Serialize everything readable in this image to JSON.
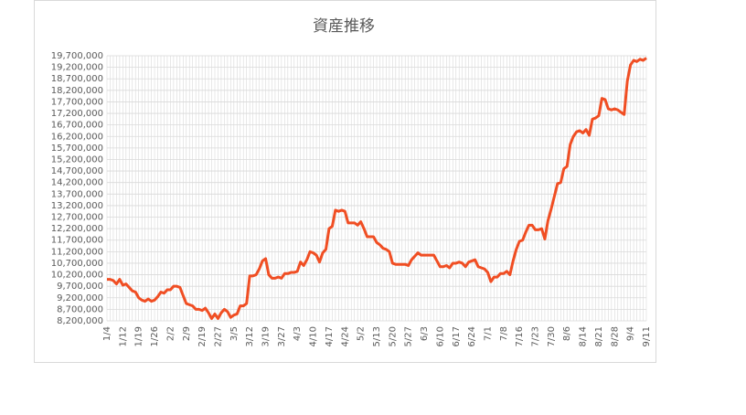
{
  "chart_data": {
    "type": "line",
    "title": "資産推移",
    "categories": [
      "1/4",
      null,
      null,
      null,
      null,
      "1/12",
      null,
      null,
      null,
      null,
      "1/19",
      null,
      null,
      null,
      null,
      "1/26",
      null,
      null,
      null,
      null,
      "2/2",
      null,
      null,
      null,
      null,
      "2/9",
      null,
      null,
      null,
      null,
      "2/19",
      null,
      null,
      null,
      null,
      "2/27",
      null,
      null,
      null,
      null,
      "3/5",
      null,
      null,
      null,
      null,
      "3/12",
      null,
      null,
      null,
      null,
      "3/19",
      null,
      null,
      null,
      null,
      "3/27",
      null,
      null,
      null,
      null,
      "4/3",
      null,
      null,
      null,
      null,
      "4/10",
      null,
      null,
      null,
      null,
      "4/17",
      null,
      null,
      null,
      null,
      "4/24",
      null,
      null,
      null,
      null,
      "5/2",
      null,
      null,
      null,
      null,
      "5/13",
      null,
      null,
      null,
      null,
      "5/20",
      null,
      null,
      null,
      null,
      "5/27",
      null,
      null,
      null,
      null,
      "6/3",
      null,
      null,
      null,
      null,
      "6/10",
      null,
      null,
      null,
      null,
      "6/17",
      null,
      null,
      null,
      null,
      "6/24",
      null,
      null,
      null,
      null,
      "7/1",
      null,
      null,
      null,
      null,
      "7/8",
      null,
      null,
      null,
      null,
      "7/16",
      null,
      null,
      null,
      null,
      "7/23",
      null,
      null,
      null,
      null,
      "7/30",
      null,
      null,
      null,
      null,
      "8/6",
      null,
      null,
      null,
      null,
      "8/14",
      null,
      null,
      null,
      null,
      "8/21",
      null,
      null,
      null,
      null,
      "8/28",
      null,
      null,
      null,
      null,
      "9/4",
      null,
      null,
      null,
      null,
      "9/11"
    ],
    "series": [
      {
        "color": "#f04e23",
        "values": [
          10000000,
          10000000,
          9950000,
          9800000,
          10000000,
          9750000,
          9800000,
          9650000,
          9500000,
          9450000,
          9200000,
          9100000,
          9050000,
          9150000,
          9050000,
          9100000,
          9250000,
          9450000,
          9400000,
          9550000,
          9550000,
          9700000,
          9700000,
          9650000,
          9300000,
          8950000,
          8900000,
          8850000,
          8700000,
          8700000,
          8650000,
          8750000,
          8550000,
          8300000,
          8500000,
          8300000,
          8550000,
          8700000,
          8600000,
          8350000,
          8450000,
          8500000,
          8850000,
          8850000,
          8950000,
          10150000,
          10150000,
          10200000,
          10450000,
          10800000,
          10900000,
          10200000,
          10050000,
          10050000,
          10100000,
          10050000,
          10250000,
          10250000,
          10300000,
          10300000,
          10350000,
          10750000,
          10600000,
          10850000,
          11200000,
          11150000,
          11050000,
          10750000,
          11150000,
          11300000,
          12200000,
          12300000,
          13000000,
          12950000,
          13000000,
          12950000,
          12450000,
          12450000,
          12450000,
          12350000,
          12500000,
          12200000,
          11850000,
          11850000,
          11850000,
          11600000,
          11500000,
          11350000,
          11300000,
          11200000,
          10700000,
          10650000,
          10650000,
          10650000,
          10650000,
          10600000,
          10850000,
          11000000,
          11150000,
          11050000,
          11050000,
          11050000,
          11050000,
          11050000,
          10800000,
          10550000,
          10550000,
          10600000,
          10500000,
          10700000,
          10700000,
          10750000,
          10700000,
          10550000,
          10750000,
          10800000,
          10850000,
          10550000,
          10500000,
          10450000,
          10300000,
          9900000,
          10100000,
          10100000,
          10250000,
          10250000,
          10350000,
          10200000,
          10800000,
          11300000,
          11650000,
          11700000,
          12050000,
          12350000,
          12350000,
          12150000,
          12150000,
          12200000,
          11750000,
          12550000,
          13050000,
          13600000,
          14150000,
          14200000,
          14800000,
          14900000,
          15850000,
          16200000,
          16400000,
          16450000,
          16350000,
          16500000,
          16250000,
          16950000,
          17000000,
          17100000,
          17850000,
          17800000,
          17400000,
          17350000,
          17400000,
          17350000,
          17250000,
          17150000,
          18600000,
          19300000,
          19500000,
          19450000,
          19550000,
          19500000,
          19600000
        ]
      }
    ],
    "ylim": [
      8200000,
      19700000
    ],
    "yticks": [
      {
        "value": 8200000,
        "label": "8,200,000"
      },
      {
        "value": 8700000,
        "label": "8,700,000"
      },
      {
        "value": 9200000,
        "label": "9,200,000"
      },
      {
        "value": 9700000,
        "label": "9,700,000"
      },
      {
        "value": 10200000,
        "label": "10,200,000"
      },
      {
        "value": 10700000,
        "label": "10,700,000"
      },
      {
        "value": 11200000,
        "label": "11,200,000"
      },
      {
        "value": 11700000,
        "label": "11,700,000"
      },
      {
        "value": 12200000,
        "label": "12,200,000"
      },
      {
        "value": 12700000,
        "label": "12,700,000"
      },
      {
        "value": 13200000,
        "label": "13,200,000"
      },
      {
        "value": 13700000,
        "label": "13,700,000"
      },
      {
        "value": 14200000,
        "label": "14,200,000"
      },
      {
        "value": 14700000,
        "label": "14,700,000"
      },
      {
        "value": 15200000,
        "label": "15,200,000"
      },
      {
        "value": 15700000,
        "label": "15,700,000"
      },
      {
        "value": 16200000,
        "label": "16,200,000"
      },
      {
        "value": 16700000,
        "label": "16,700,000"
      },
      {
        "value": 17200000,
        "label": "17,200,000"
      },
      {
        "value": 17700000,
        "label": "17,700,000"
      },
      {
        "value": 18200000,
        "label": "18,200,000"
      },
      {
        "value": 18700000,
        "label": "18,700,000"
      },
      {
        "value": 19200000,
        "label": "19,200,000"
      },
      {
        "value": 19700000,
        "label": "19,700,000"
      }
    ],
    "grid": true
  }
}
